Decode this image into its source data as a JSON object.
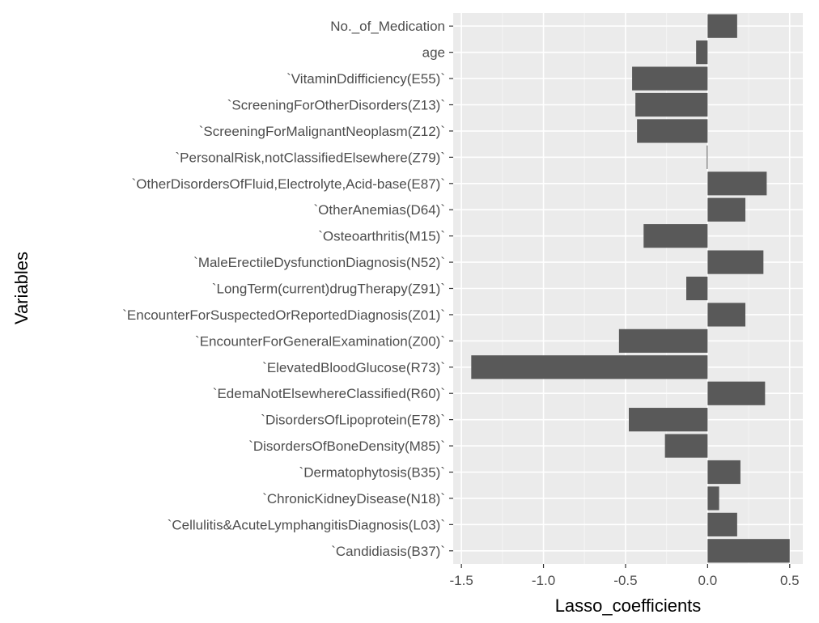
{
  "chart_data": {
    "type": "bar",
    "orientation": "horizontal",
    "xlabel": "Lasso_coefficients",
    "ylabel": "Variables",
    "xlim": [
      -1.55,
      0.58
    ],
    "xticks": [
      -1.5,
      -1.0,
      -0.5,
      0.0,
      0.5
    ],
    "xtick_labels": [
      "-1.5",
      "-1.0",
      "-0.5",
      "0.0",
      "0.5"
    ],
    "grid": true,
    "bar_color": "#595959",
    "panel_color": "#ebebeb",
    "categories": [
      "No._of_Medication",
      "age",
      "`VitaminDdifficiency(E55)`",
      "`ScreeningForOtherDisorders(Z13)`",
      "`ScreeningForMalignantNeoplasm(Z12)`",
      "`PersonalRisk,notClassifiedElsewhere(Z79)`",
      "`OtherDisordersOfFluid,Electrolyte,Acid-base(E87)`",
      "`OtherAnemias(D64)`",
      "`Osteoarthritis(M15)`",
      "`MaleErectileDysfunctionDiagnosis(N52)`",
      "`LongTerm(current)drugTherapy(Z91)`",
      "`EncounterForSuspectedOrReportedDiagnosis(Z01)`",
      "`EncounterForGeneralExamination(Z00)`",
      "`ElevatedBloodGlucose(R73)`",
      "`EdemaNotElsewhereClassified(R60)`",
      "`DisordersOfLipoprotein(E78)`",
      "`DisordersOfBoneDensity(M85)`",
      "`Dermatophytosis(B35)`",
      "`ChronicKidneyDisease(N18)`",
      "`Cellulitis&AcuteLymphangitisDiagnosis(L03)`",
      "`Candidiasis(B37)`"
    ],
    "values": [
      0.18,
      -0.07,
      -0.46,
      -0.44,
      -0.43,
      -0.005,
      0.36,
      0.23,
      -0.39,
      0.34,
      -0.13,
      0.23,
      -0.54,
      -1.44,
      0.35,
      -0.48,
      -0.26,
      0.2,
      0.07,
      0.18,
      0.5
    ]
  }
}
